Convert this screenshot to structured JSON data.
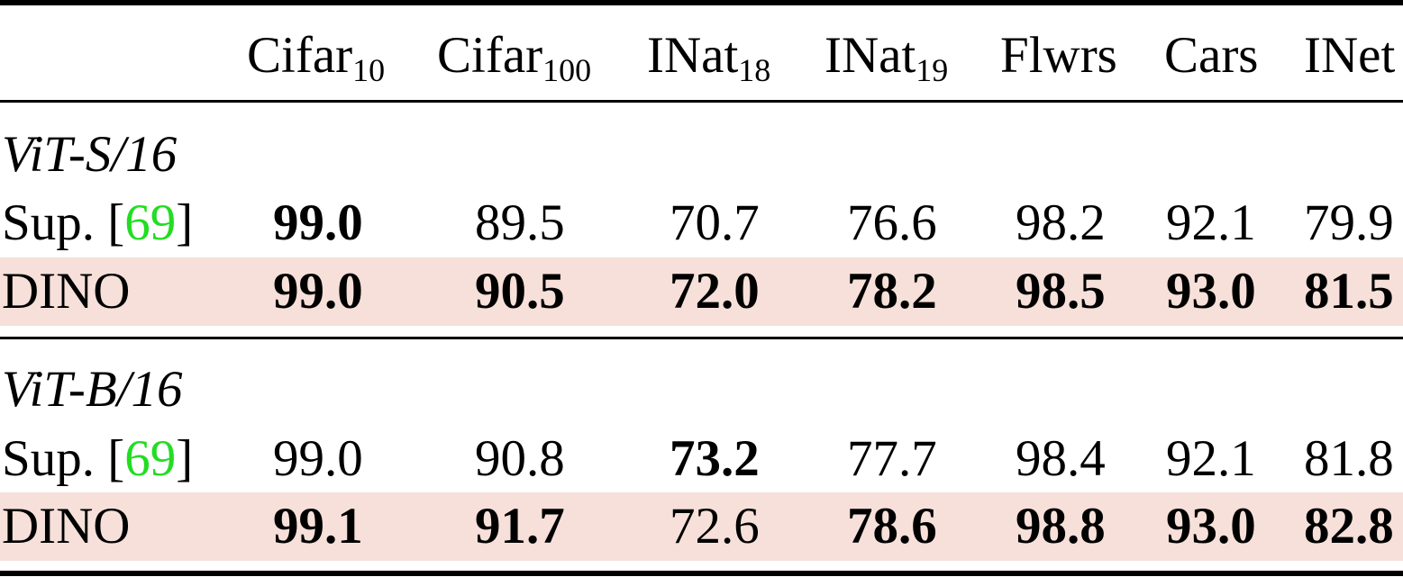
{
  "table": {
    "highlight_color": "#f6e0d9",
    "citation_color": "#22dd22",
    "columns": [
      {
        "name": "Cifar",
        "sub": "10"
      },
      {
        "name": "Cifar",
        "sub": "100"
      },
      {
        "name": "INat",
        "sub": "18"
      },
      {
        "name": "INat",
        "sub": "19"
      },
      {
        "name": "Flwrs",
        "sub": ""
      },
      {
        "name": "Cars",
        "sub": ""
      },
      {
        "name": "INet",
        "sub": ""
      }
    ],
    "sections": [
      {
        "title": "ViT-S/16",
        "rows": [
          {
            "label": "Sup. [",
            "cite": "69",
            "label_end": "]",
            "values": [
              "99.0",
              "89.5",
              "70.7",
              "76.6",
              "98.2",
              "92.1",
              "79.9"
            ],
            "bold": [
              true,
              false,
              false,
              false,
              false,
              false,
              false
            ],
            "highlighted": false
          },
          {
            "label": "DINO",
            "cite": "",
            "label_end": "",
            "values": [
              "99.0",
              "90.5",
              "72.0",
              "78.2",
              "98.5",
              "93.0",
              "81.5"
            ],
            "bold": [
              true,
              true,
              true,
              true,
              true,
              true,
              true
            ],
            "highlighted": true
          }
        ]
      },
      {
        "title": "ViT-B/16",
        "rows": [
          {
            "label": "Sup. [",
            "cite": "69",
            "label_end": "]",
            "values": [
              "99.0",
              "90.8",
              "73.2",
              "77.7",
              "98.4",
              "92.1",
              "81.8"
            ],
            "bold": [
              false,
              false,
              true,
              false,
              false,
              false,
              false
            ],
            "highlighted": false
          },
          {
            "label": "DINO",
            "cite": "",
            "label_end": "",
            "values": [
              "99.1",
              "91.7",
              "72.6",
              "78.6",
              "98.8",
              "93.0",
              "82.8"
            ],
            "bold": [
              true,
              true,
              false,
              true,
              true,
              true,
              true
            ],
            "highlighted": true
          }
        ]
      }
    ]
  }
}
